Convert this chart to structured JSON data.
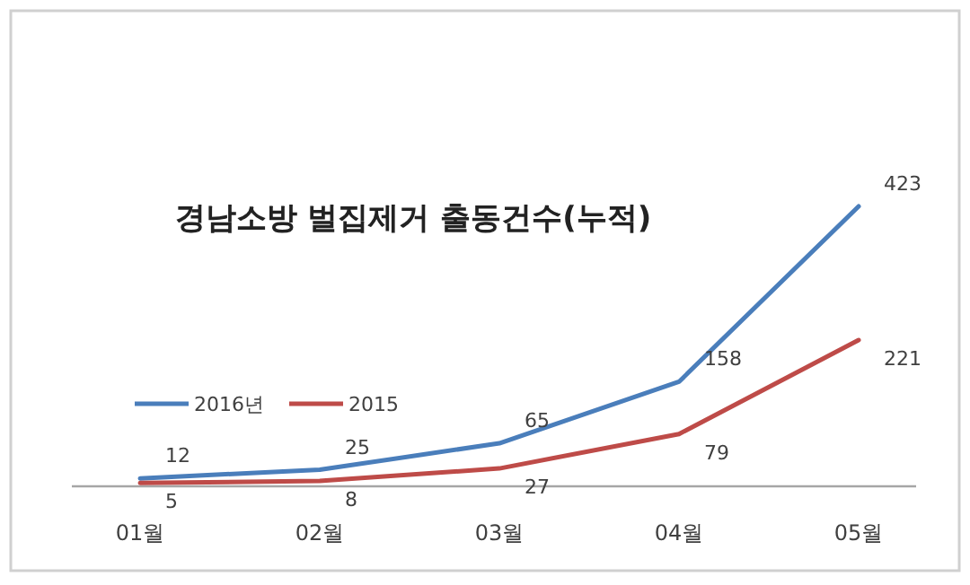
{
  "chart_data": {
    "type": "line",
    "title": "경남소방 벌집제거 출동건수(누적)",
    "categories": [
      "01월",
      "02월",
      "03월",
      "04월",
      "05월"
    ],
    "series": [
      {
        "name": "2016년",
        "color": "#4a7ebb",
        "values": [
          12,
          25,
          65,
          158,
          423
        ]
      },
      {
        "name": "2015",
        "color": "#be4b48",
        "values": [
          5,
          8,
          27,
          79,
          221
        ]
      }
    ],
    "data_labels": true,
    "legend": "left",
    "marker": "none",
    "line_style": "solid"
  }
}
